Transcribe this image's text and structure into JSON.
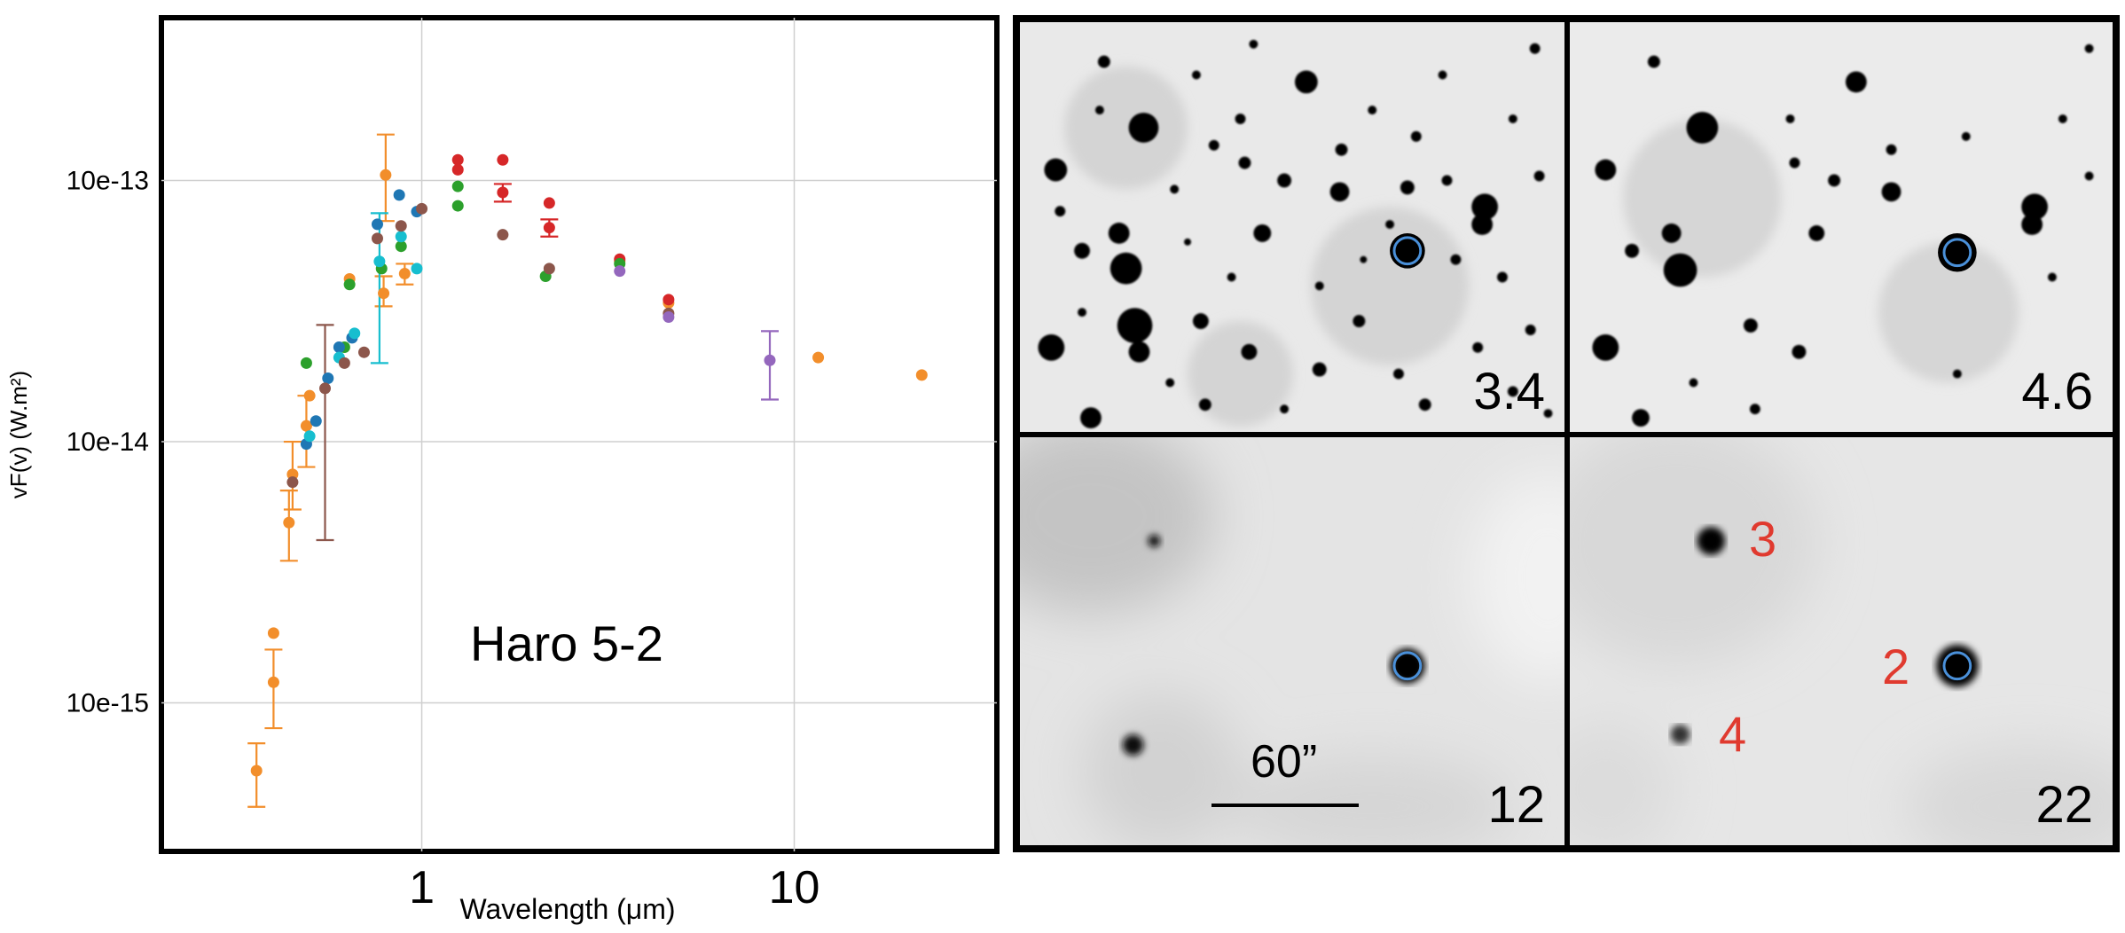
{
  "chart_data": {
    "type": "scatter",
    "title": "",
    "annotation": "Haro 5-2",
    "xlabel": "Wavelength (μm)",
    "ylabel": "vF(v) (W.m²)",
    "xscale": "log",
    "yscale": "log",
    "xlim": [
      0.2,
      35
    ],
    "ylim": [
      2.7e-16,
      4.2e-13
    ],
    "xticks": [
      {
        "value": 1,
        "label": "1"
      },
      {
        "value": 10,
        "label": "10"
      }
    ],
    "yticks": [
      {
        "value": 1e-13,
        "label": "10e-13"
      },
      {
        "value": 1e-14,
        "label": "10e-14"
      },
      {
        "value": 1e-15,
        "label": "10e-15"
      }
    ],
    "grid": true,
    "legend": "none",
    "series": [
      {
        "color": "#f28e2b",
        "points": [
          {
            "x": 0.36,
            "y": 5.5e-16,
            "yerr": [
              4e-16,
              7e-16
            ]
          },
          {
            "x": 0.4,
            "y": 1.2e-15,
            "yerr": [
              8e-16,
              1.6e-15
            ]
          },
          {
            "x": 0.4,
            "y": 1.85e-15
          },
          {
            "x": 0.44,
            "y": 4.9e-15,
            "yerr": [
              3.5e-15,
              6.5e-15
            ]
          },
          {
            "x": 0.45,
            "y": 7.5e-15,
            "yerr": [
              5.5e-15,
              1e-14
            ]
          },
          {
            "x": 0.49,
            "y": 1.15e-14,
            "yerr": [
              8e-15,
              1.5e-14
            ]
          },
          {
            "x": 0.5,
            "y": 1.5e-14
          },
          {
            "x": 0.64,
            "y": 4.2e-14
          },
          {
            "x": 0.79,
            "y": 3.7e-14,
            "yerr": [
              3.3e-14,
              4.3e-14
            ]
          },
          {
            "x": 0.8,
            "y": 1.05e-13,
            "yerr": [
              7e-14,
              1.5e-13
            ]
          },
          {
            "x": 0.9,
            "y": 4.4e-14,
            "yerr": [
              4e-14,
              4.8e-14
            ]
          },
          {
            "x": 3.4,
            "y": 4.9e-14
          },
          {
            "x": 4.6,
            "y": 3.4e-14
          },
          {
            "x": 11.6,
            "y": 2.1e-14
          },
          {
            "x": 22.0,
            "y": 1.8e-14
          }
        ]
      },
      {
        "color": "#d62728",
        "points": [
          {
            "x": 1.25,
            "y": 1.2e-13
          },
          {
            "x": 1.25,
            "y": 1.1e-13
          },
          {
            "x": 1.65,
            "y": 1.2e-13
          },
          {
            "x": 1.65,
            "y": 9e-14,
            "yerr": [
              8.3e-14,
              9.7e-14
            ]
          },
          {
            "x": 2.2,
            "y": 8.2e-14
          },
          {
            "x": 2.2,
            "y": 6.6e-14,
            "yerr": [
              6.1e-14,
              7.1e-14
            ]
          },
          {
            "x": 3.4,
            "y": 5e-14
          },
          {
            "x": 4.6,
            "y": 3.5e-14
          }
        ]
      },
      {
        "color": "#2ca02c",
        "points": [
          {
            "x": 0.49,
            "y": 2e-14
          },
          {
            "x": 0.62,
            "y": 2.3e-14
          },
          {
            "x": 0.64,
            "y": 4e-14
          },
          {
            "x": 0.78,
            "y": 4.6e-14
          },
          {
            "x": 0.88,
            "y": 5.6e-14
          },
          {
            "x": 1.25,
            "y": 9.5e-14
          },
          {
            "x": 1.25,
            "y": 8e-14
          },
          {
            "x": 2.15,
            "y": 4.3e-14
          },
          {
            "x": 3.4,
            "y": 4.8e-14
          }
        ]
      },
      {
        "color": "#1f77b4",
        "points": [
          {
            "x": 0.49,
            "y": 9.8e-15
          },
          {
            "x": 0.52,
            "y": 1.2e-14
          },
          {
            "x": 0.56,
            "y": 1.75e-14
          },
          {
            "x": 0.6,
            "y": 2.3e-14
          },
          {
            "x": 0.65,
            "y": 2.5e-14
          },
          {
            "x": 0.76,
            "y": 6.8e-14
          },
          {
            "x": 0.87,
            "y": 8.8e-14
          },
          {
            "x": 0.97,
            "y": 7.6e-14
          }
        ]
      },
      {
        "color": "#17becf",
        "points": [
          {
            "x": 0.5,
            "y": 1.05e-14
          },
          {
            "x": 0.6,
            "y": 2.1e-14
          },
          {
            "x": 0.66,
            "y": 2.6e-14
          },
          {
            "x": 0.77,
            "y": 4.9e-14,
            "yerr": [
              2e-14,
              7.5e-14
            ]
          },
          {
            "x": 0.88,
            "y": 6.1e-14
          },
          {
            "x": 0.97,
            "y": 4.6e-14
          }
        ]
      },
      {
        "color": "#8c564b",
        "points": [
          {
            "x": 0.45,
            "y": 7e-15
          },
          {
            "x": 0.55,
            "y": 1.6e-14,
            "yerr": [
              4.2e-15,
              2.8e-14
            ]
          },
          {
            "x": 0.62,
            "y": 2e-14
          },
          {
            "x": 0.7,
            "y": 2.2e-14
          },
          {
            "x": 0.76,
            "y": 6e-14
          },
          {
            "x": 0.88,
            "y": 6.7e-14
          },
          {
            "x": 1.0,
            "y": 7.8e-14
          },
          {
            "x": 1.65,
            "y": 6.2e-14
          },
          {
            "x": 2.2,
            "y": 4.6e-14
          },
          {
            "x": 4.6,
            "y": 3.1e-14
          }
        ]
      },
      {
        "color": "#9467bd",
        "points": [
          {
            "x": 3.4,
            "y": 4.5e-14
          },
          {
            "x": 4.6,
            "y": 3e-14
          },
          {
            "x": 8.6,
            "y": 2.05e-14,
            "yerr": [
              1.45e-14,
              2.65e-14
            ]
          }
        ]
      }
    ]
  },
  "image_panels": {
    "bands": [
      "3.4",
      "4.6",
      "12",
      "22"
    ],
    "scale_bar_label": "60”",
    "source_labels": [
      "3",
      "2",
      "4"
    ]
  }
}
